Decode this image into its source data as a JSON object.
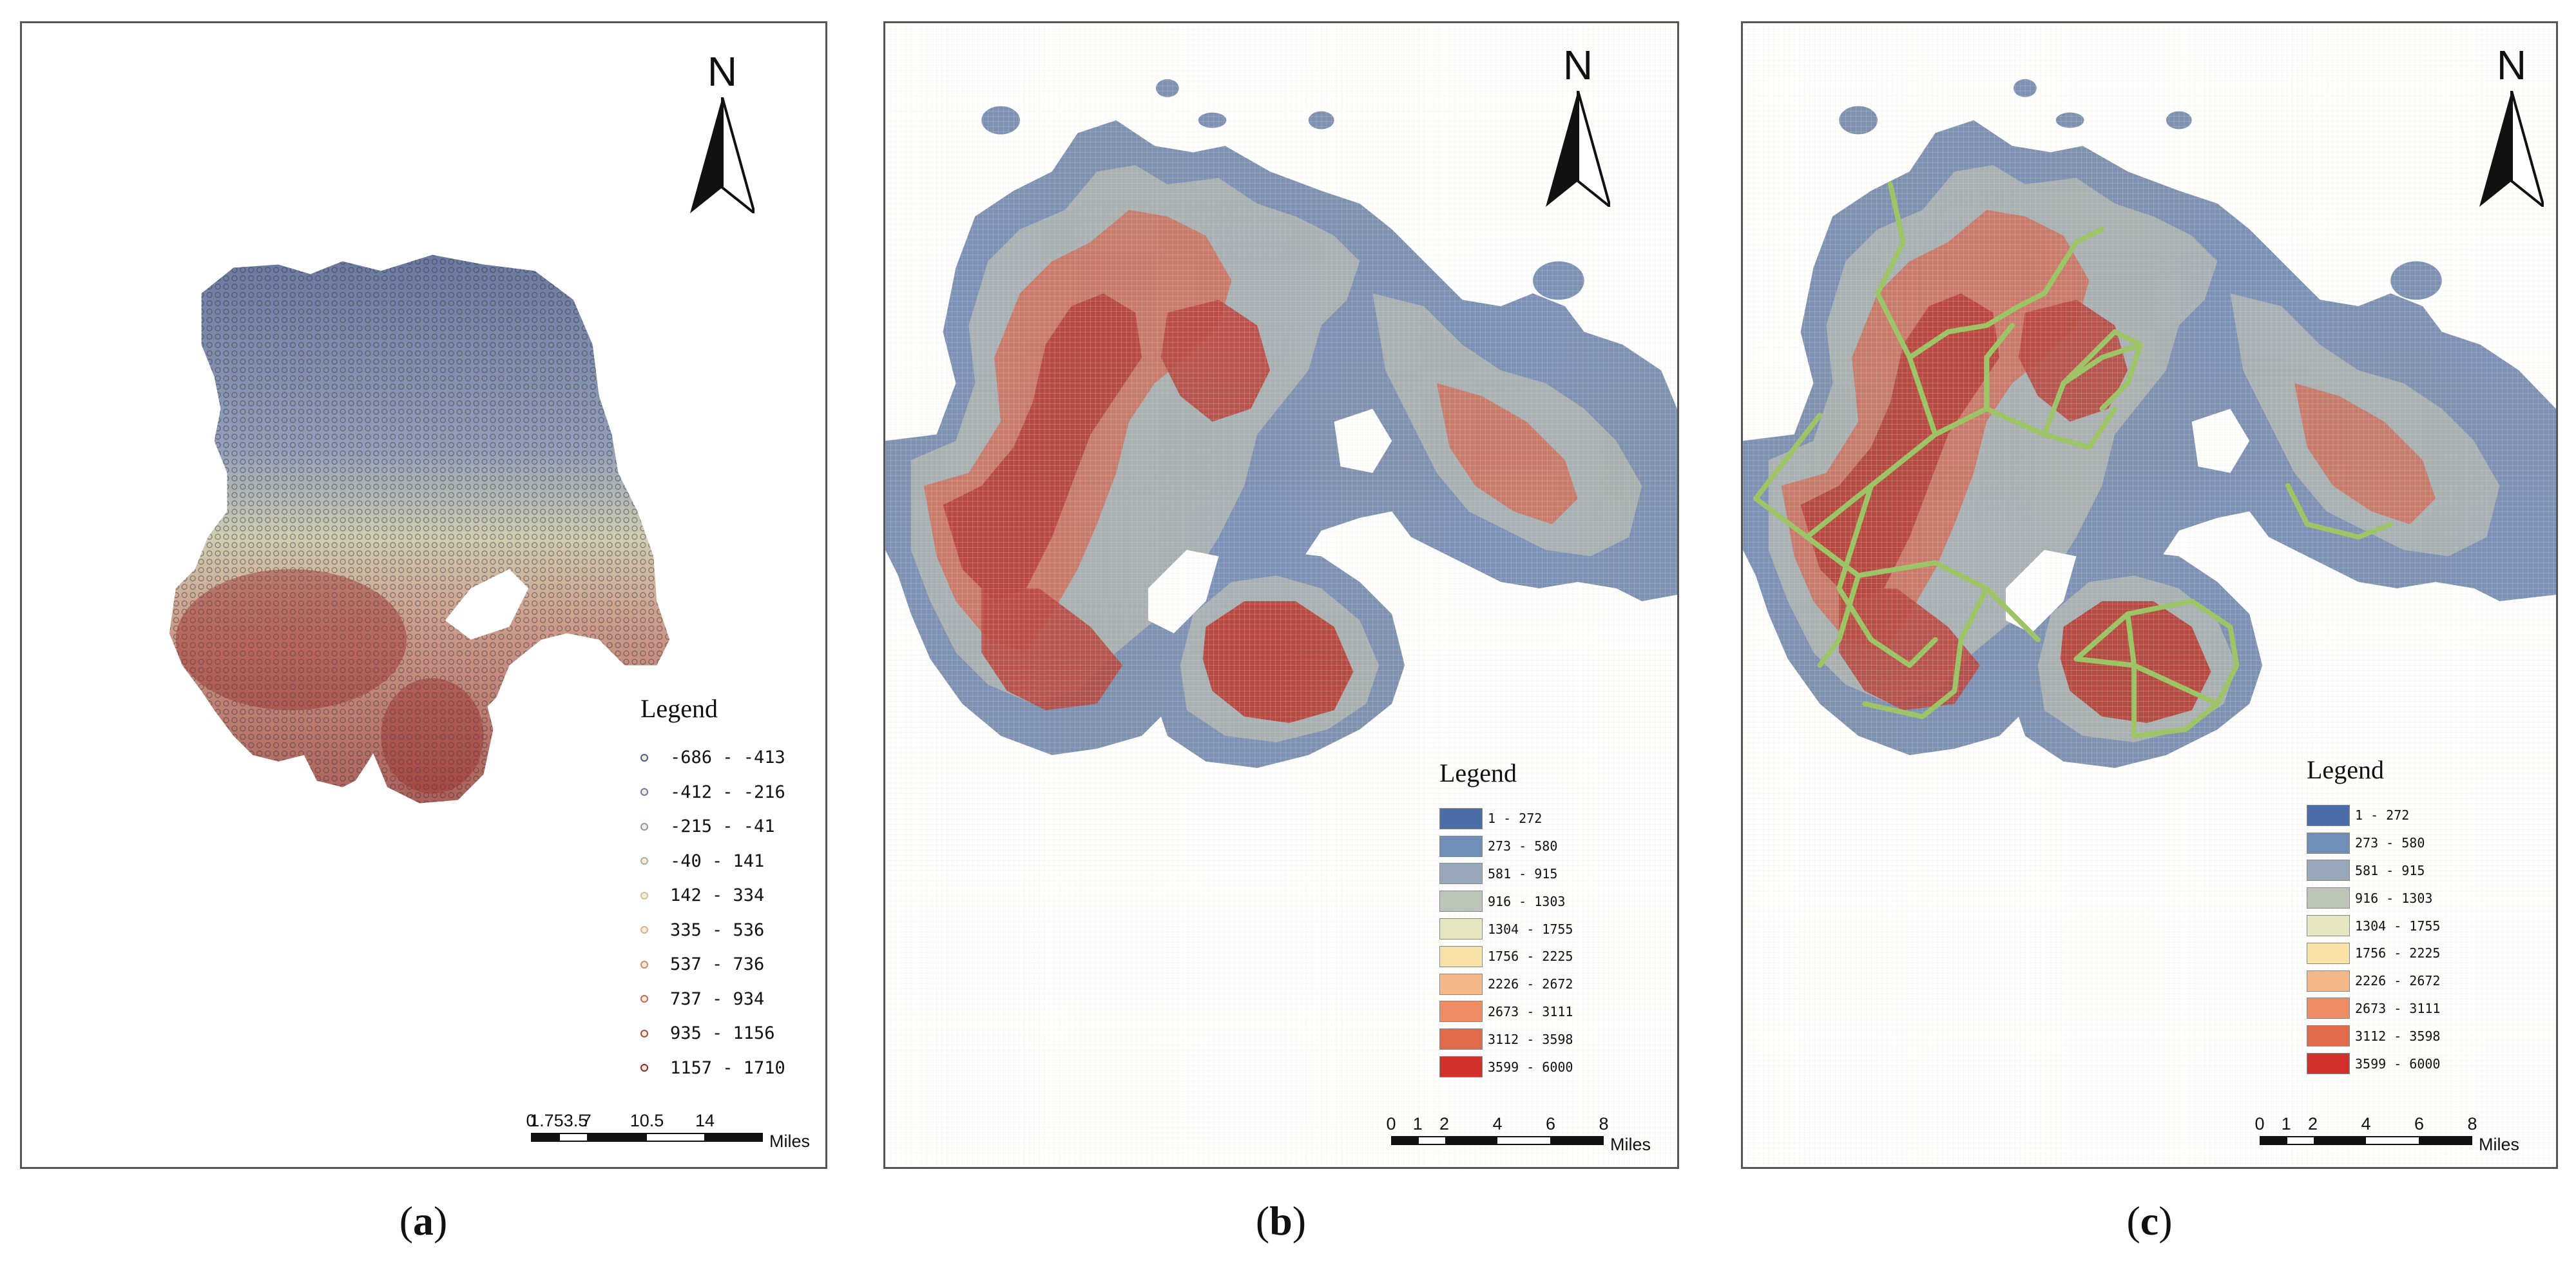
{
  "panels": [
    {
      "id": "a",
      "caption_open": "(",
      "caption_letter": "a",
      "caption_close": ")",
      "north_label": "N",
      "legend_title": "Legend",
      "legend_items": [
        {
          "label": "-686 - -413",
          "color": "#4a5a8c"
        },
        {
          "label": "-412 - -216",
          "color": "#6a7aa0"
        },
        {
          "label": "-215 - -41",
          "color": "#8b97ac"
        },
        {
          "label": "-40 - 141",
          "color": "#a8b2a8"
        },
        {
          "label": "142 - 334",
          "color": "#c9c59a"
        },
        {
          "label": "335 - 536",
          "color": "#d9b48e"
        },
        {
          "label": "537 - 736",
          "color": "#c88a6e"
        },
        {
          "label": "737 - 934",
          "color": "#b86b5a"
        },
        {
          "label": "935 - 1156",
          "color": "#a8483e"
        },
        {
          "label": "1157 - 1710",
          "color": "#962a2a"
        }
      ],
      "scale_labels": [
        "0",
        "1.753.5",
        "7",
        "10.5",
        "14"
      ],
      "scale_unit": "Miles"
    },
    {
      "id": "b",
      "caption_open": "(",
      "caption_letter": "b",
      "caption_close": ")",
      "north_label": "N",
      "legend_title": "Legend",
      "legend_items": [
        {
          "label": "1 - 272",
          "color": "#4a6fa8"
        },
        {
          "label": "273 - 580",
          "color": "#6f8fb8"
        },
        {
          "label": "581 - 915",
          "color": "#97a8bd"
        },
        {
          "label": "916 - 1303",
          "color": "#bcc6b8"
        },
        {
          "label": "1304 - 1755",
          "color": "#e6e6c0"
        },
        {
          "label": "1756 - 2225",
          "color": "#f8e2a8"
        },
        {
          "label": "2226 - 2672",
          "color": "#f5b888"
        },
        {
          "label": "2673 - 3111",
          "color": "#ee8c64"
        },
        {
          "label": "3112 - 3598",
          "color": "#e06a4a"
        },
        {
          "label": "3599 - 6000",
          "color": "#d2302a"
        }
      ],
      "scale_labels": [
        "0",
        "1",
        "2",
        "4",
        "6",
        "8"
      ],
      "scale_unit": "Miles"
    },
    {
      "id": "c",
      "caption_open": "(",
      "caption_letter": "c",
      "caption_close": ")",
      "north_label": "N",
      "legend_title": "Legend",
      "legend_items": [
        {
          "label": "1 - 272",
          "color": "#4a6fa8"
        },
        {
          "label": "273 - 580",
          "color": "#6f8fb8"
        },
        {
          "label": "581 - 915",
          "color": "#97a8bd"
        },
        {
          "label": "916 - 1303",
          "color": "#bcc6b8"
        },
        {
          "label": "1304 - 1755",
          "color": "#e6e6c0"
        },
        {
          "label": "1756 - 2225",
          "color": "#f8e2a8"
        },
        {
          "label": "2226 - 2672",
          "color": "#f5b888"
        },
        {
          "label": "2673 - 3111",
          "color": "#ee8c64"
        },
        {
          "label": "3112 - 3598",
          "color": "#e06a4a"
        },
        {
          "label": "3599 - 6000",
          "color": "#d2302a"
        }
      ],
      "scale_labels": [
        "0",
        "1",
        "2",
        "4",
        "6",
        "8"
      ],
      "scale_unit": "Miles"
    }
  ],
  "colors": {
    "map_blue": "#6e86aa",
    "map_grey": "#a9b3b8",
    "map_cream": "#d8d4b4",
    "map_red": "#b8524a",
    "route_green": "#9dc466"
  }
}
